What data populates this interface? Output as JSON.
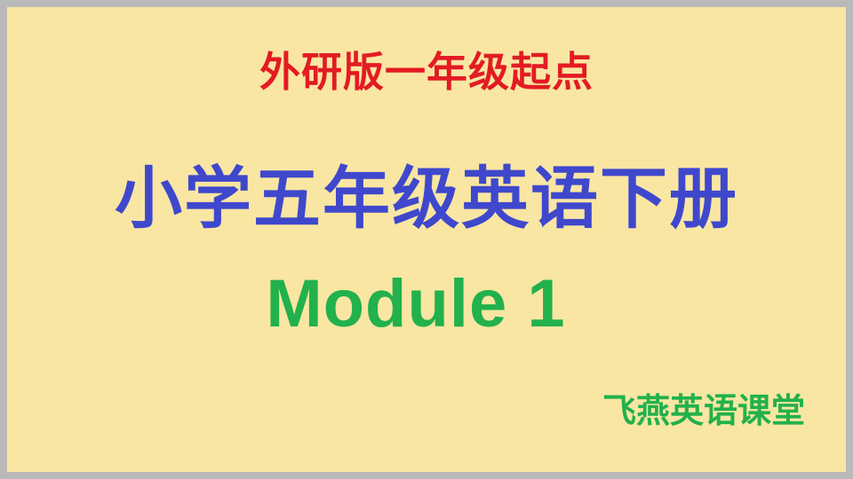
{
  "slide": {
    "edition": "外研版一年级起点",
    "course_title": "小学五年级英语下册",
    "module": "Module 1",
    "brand": "飞燕英语课堂"
  },
  "colors": {
    "background": "#f9e6a3",
    "border": "#b9b9b9",
    "edition": "#e31b23",
    "course_title": "#3f48cc",
    "module": "#22b14c",
    "brand": "#22b14c"
  }
}
